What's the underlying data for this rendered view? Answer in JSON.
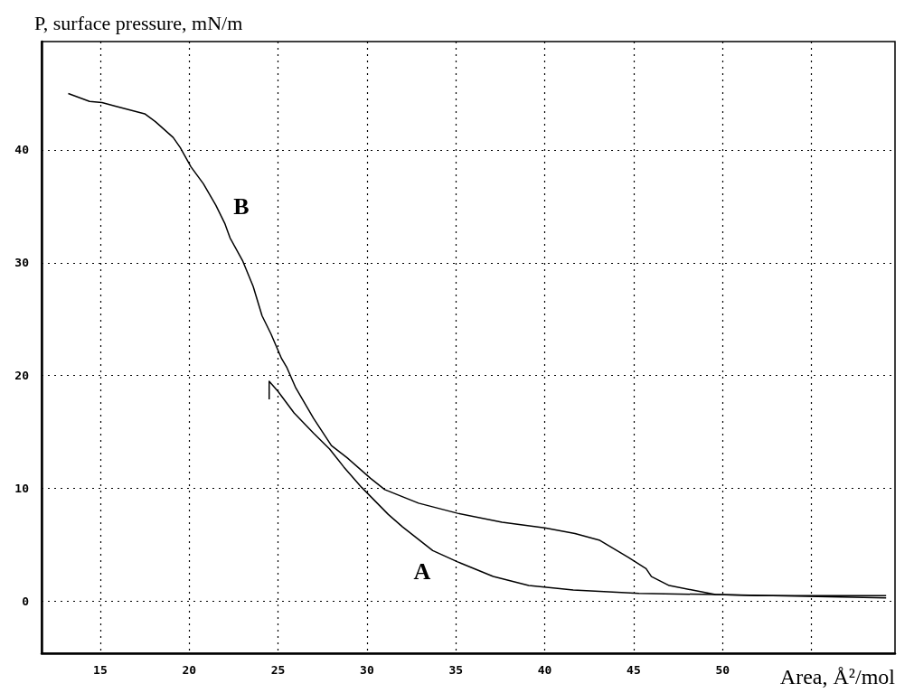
{
  "chart_data": {
    "type": "line",
    "ylabel": "P, surface pressure, mN/m",
    "xlabel": "Area, Å²/mol",
    "xlim": [
      11.7,
      59.7
    ],
    "xticks": [
      15,
      20,
      25,
      30,
      35,
      40,
      45,
      50,
      {
        "value": 55,
        "label": null
      }
    ],
    "ylim": [
      -4.6,
      49.6
    ],
    "yticks": [
      0,
      10,
      20,
      30,
      40
    ],
    "grid": true,
    "marker": "none",
    "line_style": "solid",
    "series": [
      {
        "color": "#000000",
        "x": [
          24.5,
          24.5,
          25.0,
          25.9,
          27.0,
          27.9,
          28.7,
          29.7,
          31.2,
          32.0,
          33.7,
          35.1,
          37.1,
          39.1,
          41.6,
          45.3,
          49.6,
          59.2
        ],
        "values": [
          17.9,
          19.5,
          18.6,
          16.7,
          14.9,
          13.5,
          11.9,
          10.1,
          7.7,
          6.6,
          4.5,
          3.5,
          2.2,
          1.4,
          1.0,
          0.7,
          0.6,
          0.3
        ]
      },
      {
        "color": "#000000",
        "x": [
          13.2,
          14.4,
          15.1,
          15.8,
          17.5,
          18.1,
          19.1,
          19.5,
          20.1,
          20.8,
          21.5,
          22.0,
          22.3,
          23.0,
          23.6,
          24.1,
          24.6,
          25.2,
          25.5,
          26.0,
          27.0,
          28.0,
          28.9,
          30.2,
          31.0,
          32.9,
          35.1,
          37.6,
          40.0,
          41.7,
          43.1,
          44.7,
          45.7,
          46.0,
          47.0,
          48.3,
          49.6,
          52.0,
          59.2
        ],
        "values": [
          45.0,
          44.3,
          44.2,
          43.9,
          43.2,
          42.5,
          41.1,
          40.2,
          38.5,
          37.0,
          35.1,
          33.5,
          32.2,
          30.2,
          27.9,
          25.3,
          23.7,
          21.5,
          20.7,
          18.9,
          16.2,
          13.8,
          12.7,
          10.9,
          9.9,
          8.7,
          7.8,
          7.0,
          6.5,
          6.0,
          5.4,
          3.9,
          2.9,
          2.2,
          1.4,
          1.0,
          0.6,
          0.5,
          0.5
        ]
      }
    ],
    "annotations": [
      "B",
      "A"
    ]
  }
}
